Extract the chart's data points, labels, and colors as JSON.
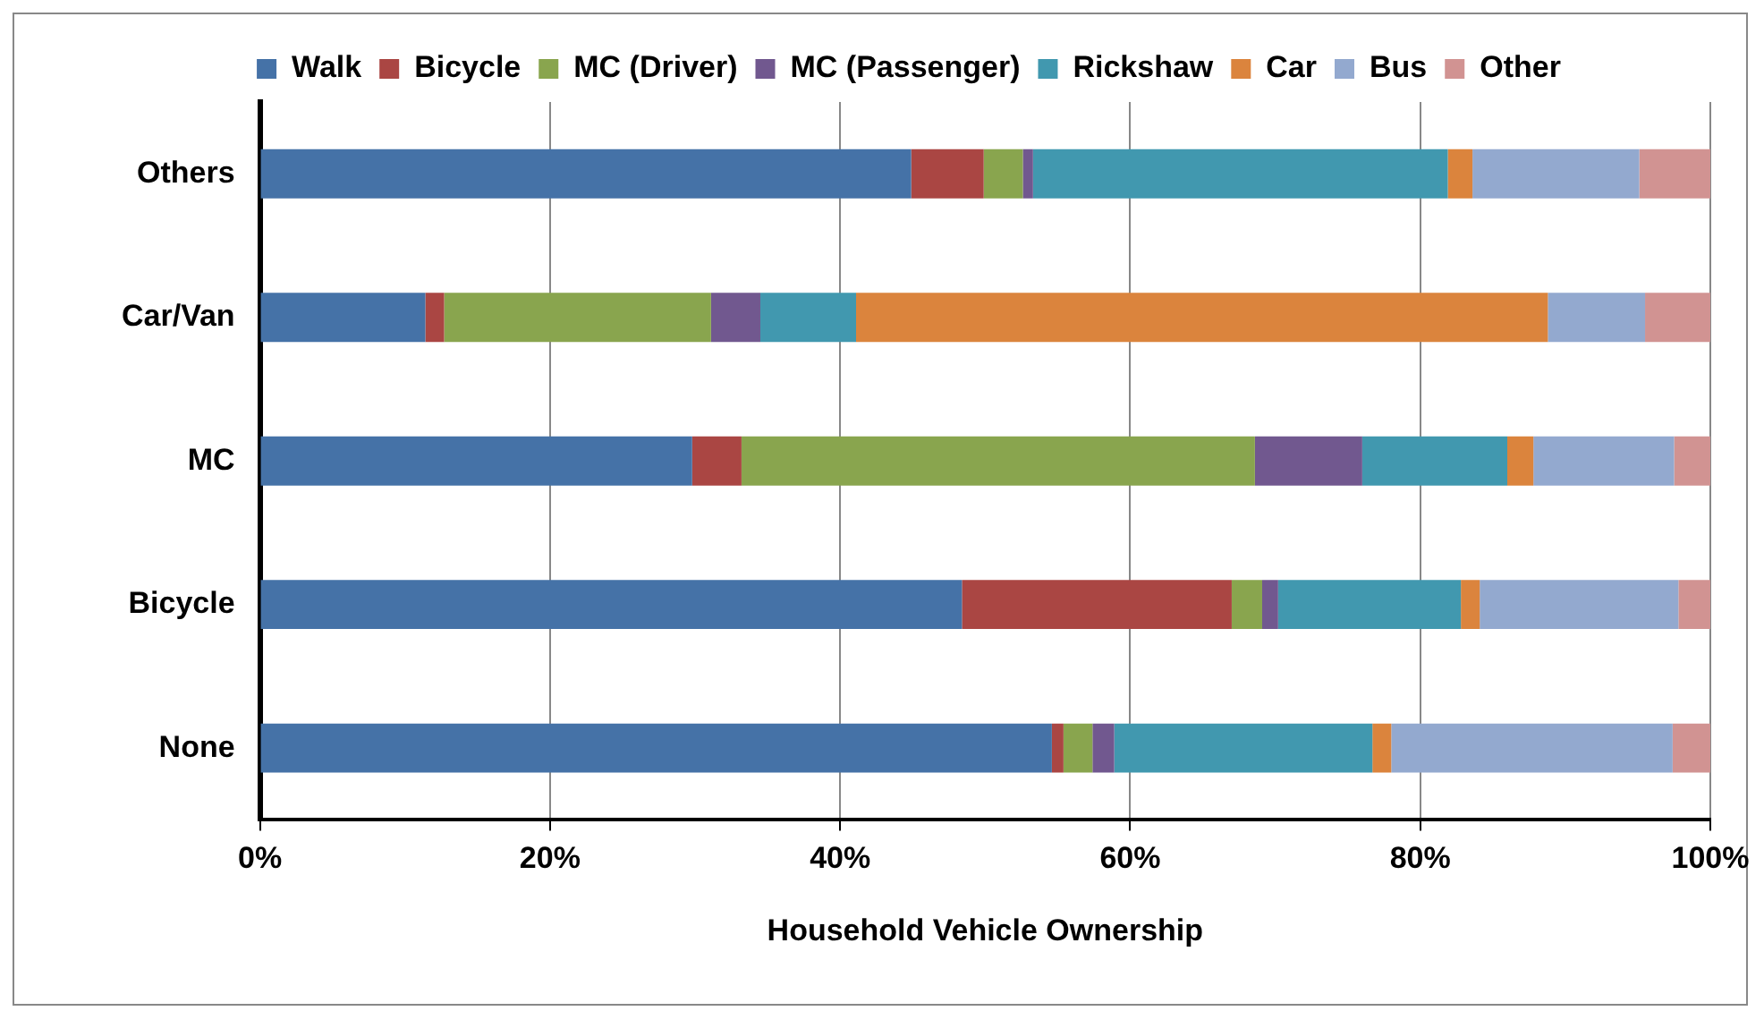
{
  "chart_data": {
    "type": "bar",
    "orientation": "horizontal",
    "stacked": true,
    "categories": [
      "Others",
      "Car/Van",
      "MC",
      "Bicycle",
      "None"
    ],
    "series": [
      {
        "name": "Walk",
        "color": "#4572a7",
        "values": [
          44.9,
          11.4,
          29.8,
          48.4,
          54.6
        ]
      },
      {
        "name": "Bicycle",
        "color": "#aa4643",
        "values": [
          5.0,
          1.3,
          3.4,
          18.6,
          0.8
        ]
      },
      {
        "name": "MC (Driver)",
        "color": "#89a54e",
        "values": [
          2.7,
          18.4,
          35.4,
          2.1,
          2.0
        ]
      },
      {
        "name": "MC (Passenger)",
        "color": "#71588f",
        "values": [
          0.7,
          3.4,
          7.4,
          1.1,
          1.5
        ]
      },
      {
        "name": "Rickshaw",
        "color": "#4198af",
        "values": [
          28.6,
          6.6,
          10.0,
          12.6,
          17.8
        ]
      },
      {
        "name": "Car",
        "color": "#db843d",
        "values": [
          1.7,
          47.7,
          1.8,
          1.3,
          1.3
        ]
      },
      {
        "name": "Bus",
        "color": "#93a9cf",
        "values": [
          11.5,
          6.7,
          9.7,
          13.7,
          19.4
        ]
      },
      {
        "name": "Other",
        "color": "#d19392",
        "values": [
          4.9,
          4.5,
          2.5,
          2.2,
          2.6
        ]
      }
    ],
    "xlabel": "Household Vehicle Ownership",
    "xlim": [
      0,
      100
    ],
    "xticks": [
      {
        "value": 0,
        "label": "0%"
      },
      {
        "value": 20,
        "label": "20%"
      },
      {
        "value": 40,
        "label": "40%"
      },
      {
        "value": 60,
        "label": "60%"
      },
      {
        "value": 80,
        "label": "80%"
      },
      {
        "value": 100,
        "label": "100%"
      }
    ],
    "grid": "x",
    "legend": "top"
  }
}
